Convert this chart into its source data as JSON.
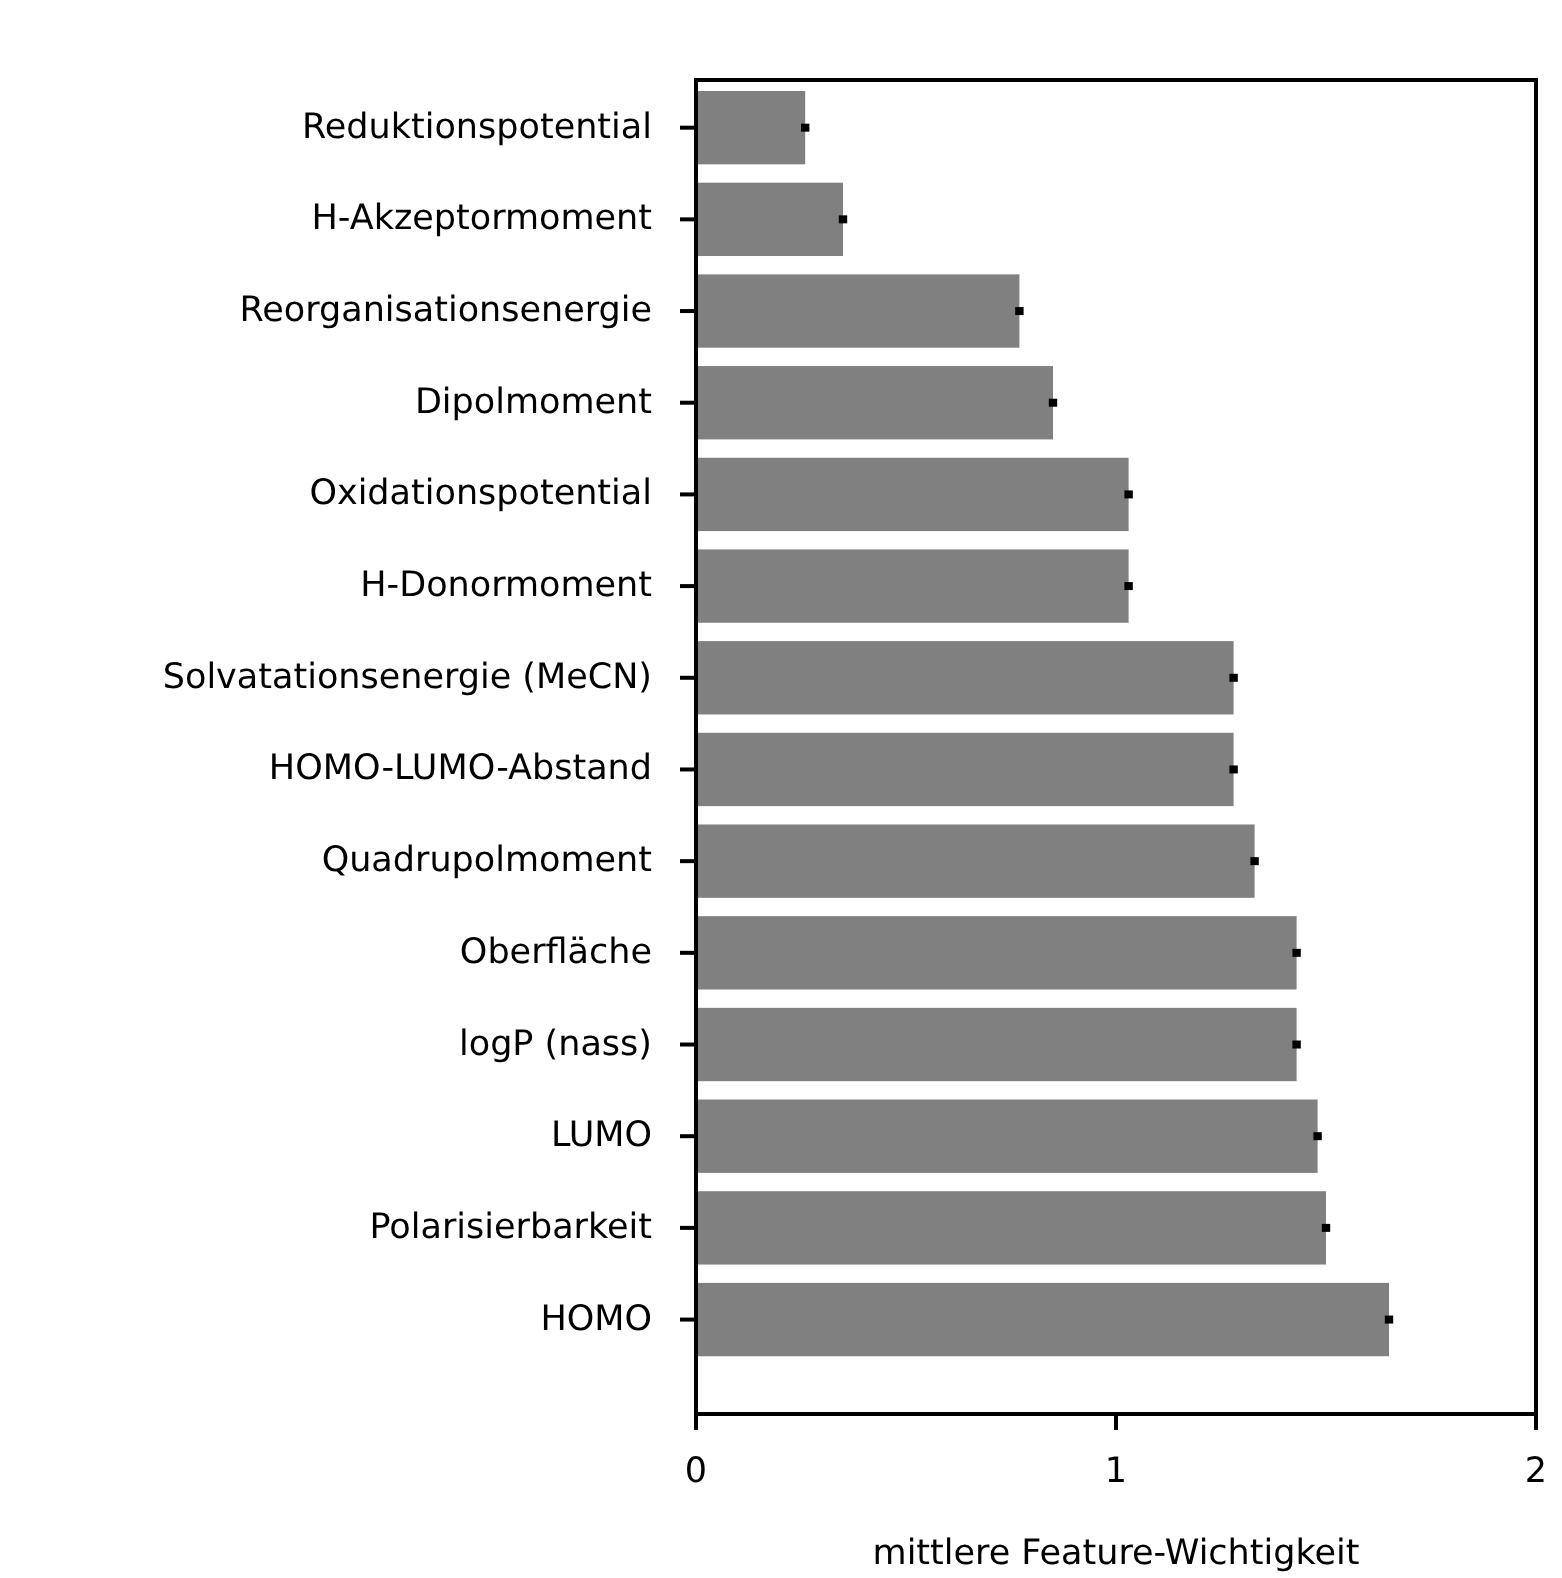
{
  "chart_data": {
    "type": "bar",
    "orientation": "horizontal",
    "xlabel": "mittlere Feature-Wichtigkeit",
    "categories": [
      "Reduktionspotential",
      "H-Akzeptormoment",
      "Reorganisationsenergie",
      "Dipolmoment",
      "Oxidationspotential",
      "H-Donormoment",
      "Solvatationsenergie (MeCN)",
      "HOMO-LUMO-Abstand",
      "Quadrupolmoment",
      "Oberfläche",
      "logP (nass)",
      "LUMO",
      "Polarisierbarkeit",
      "HOMO"
    ],
    "values": [
      0.26,
      0.35,
      0.77,
      0.85,
      1.03,
      1.03,
      1.28,
      1.28,
      1.33,
      1.43,
      1.43,
      1.48,
      1.5,
      1.65
    ],
    "errors": [
      0.01,
      0.01,
      0.01,
      0.01,
      0.01,
      0.01,
      0.01,
      0.01,
      0.01,
      0.01,
      0.01,
      0.01,
      0.01,
      0.01
    ],
    "color": "#808080",
    "xlim": [
      0,
      2
    ],
    "xticks": [
      0,
      1,
      2
    ]
  }
}
